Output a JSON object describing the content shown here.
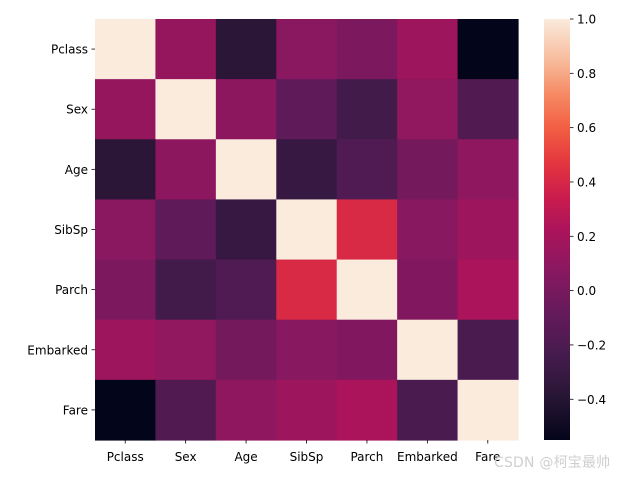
{
  "chart_data": {
    "type": "heatmap",
    "title": "",
    "xlabel": "",
    "ylabel": "",
    "row_labels": [
      "Pclass",
      "Sex",
      "Age",
      "SibSp",
      "Parch",
      "Embarked",
      "Fare"
    ],
    "col_labels": [
      "Pclass",
      "Sex",
      "Age",
      "SibSp",
      "Parch",
      "Embarked",
      "Fare"
    ],
    "values": [
      [
        1.0,
        0.13,
        -0.37,
        0.08,
        0.02,
        0.16,
        -0.55
      ],
      [
        0.13,
        1.0,
        0.09,
        -0.11,
        -0.25,
        0.11,
        -0.18
      ],
      [
        -0.37,
        0.09,
        1.0,
        -0.31,
        -0.19,
        -0.01,
        0.1
      ],
      [
        0.08,
        -0.11,
        -0.31,
        1.0,
        0.41,
        0.07,
        0.16
      ],
      [
        0.02,
        -0.25,
        -0.19,
        0.41,
        1.0,
        0.04,
        0.22
      ],
      [
        0.16,
        0.11,
        -0.01,
        0.07,
        0.04,
        1.0,
        -0.22
      ],
      [
        -0.55,
        -0.18,
        0.1,
        0.16,
        0.22,
        -0.22,
        1.0
      ]
    ],
    "colormap": "rocket",
    "vmin": -0.55,
    "vmax": 1.0,
    "colorbar_ticks": [
      "1.0",
      "0.8",
      "0.6",
      "0.4",
      "0.2",
      "0.0",
      "−0.2",
      "−0.4"
    ],
    "colorbar_tick_values": [
      1.0,
      0.8,
      0.6,
      0.4,
      0.2,
      0.0,
      -0.2,
      -0.4
    ],
    "grid": false,
    "legend": "colorbar-right"
  },
  "watermark": {
    "prefix": "CSDN @",
    "name": "柯宝最帅"
  }
}
